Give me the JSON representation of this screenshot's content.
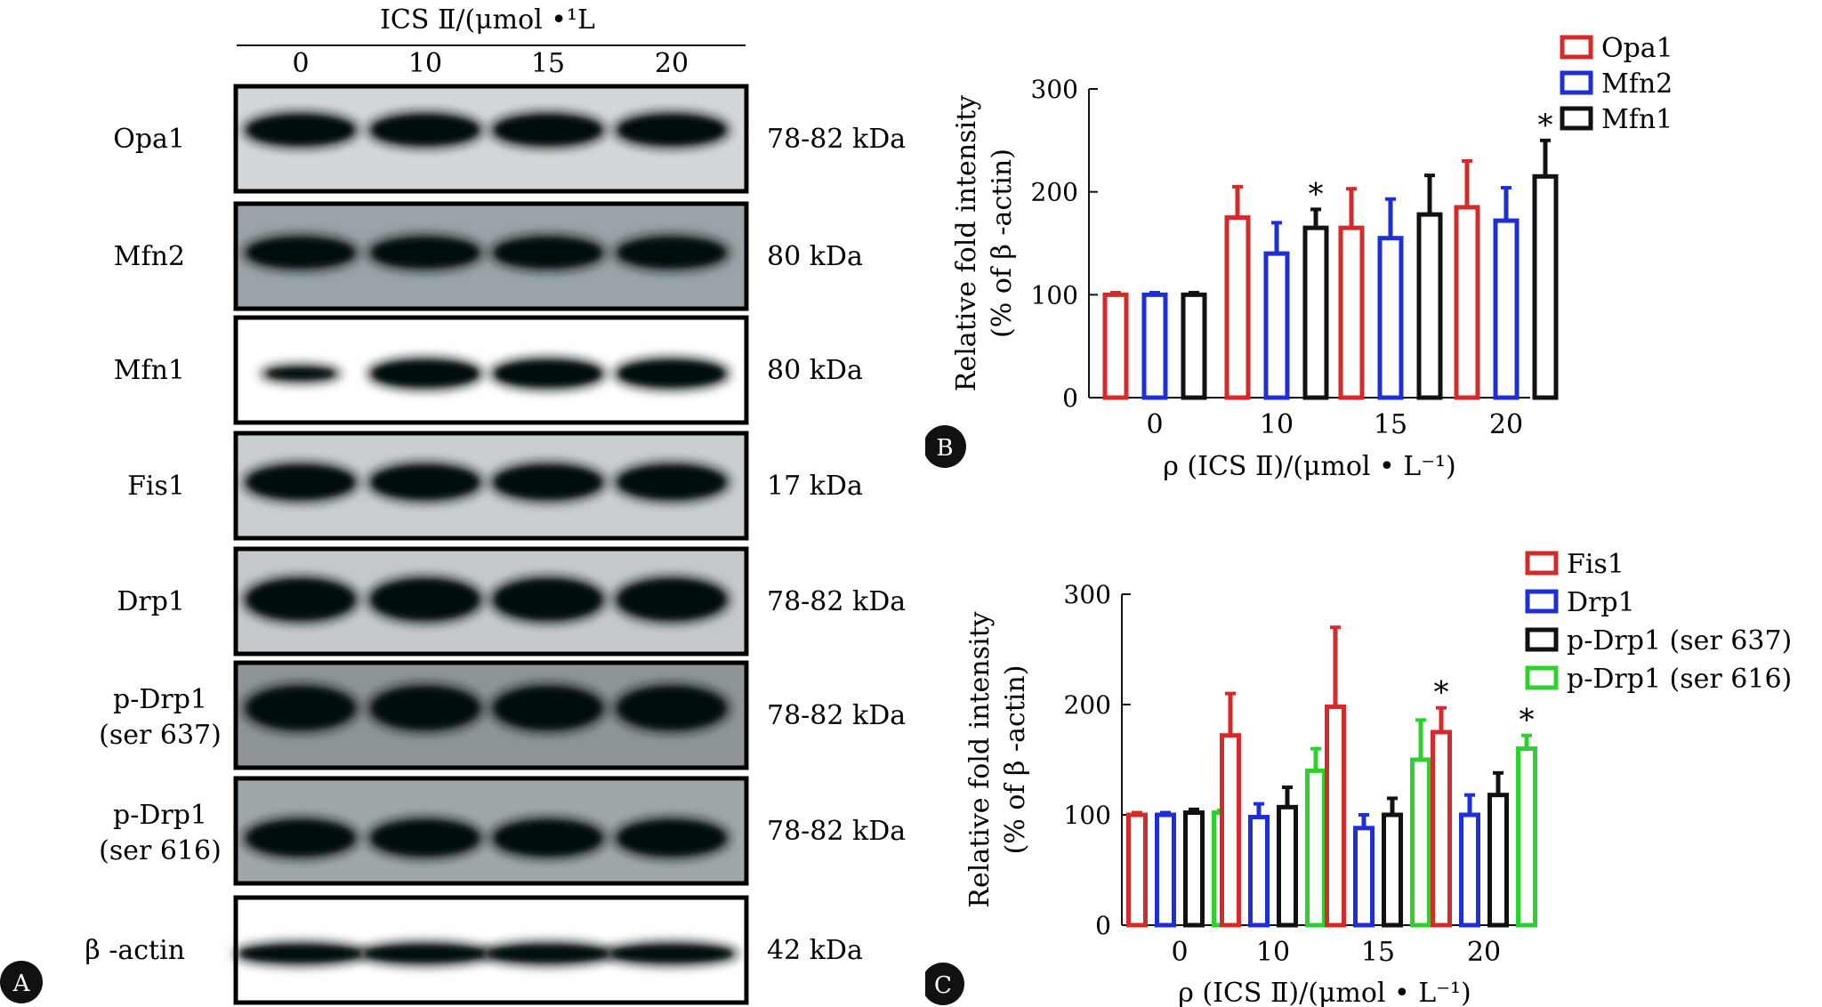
{
  "panel_a": {
    "header": "ICS Ⅱ/(μmol •¹L",
    "lanes": [
      "0",
      "10",
      "15",
      "20"
    ],
    "rows": [
      {
        "label": "Opa1",
        "kda": "78-82 kDa"
      },
      {
        "label": "Mfn2",
        "kda": "80 kDa"
      },
      {
        "label": "Mfn1",
        "kda": "80 kDa"
      },
      {
        "label": "Fis1",
        "kda": "17 kDa"
      },
      {
        "label": "Drp1",
        "kda": "78-82 kDa"
      },
      {
        "label": "p-Drp1\n(ser 637)",
        "kda": "78-82 kDa"
      },
      {
        "label": "p-Drp1\n(ser 616)",
        "kda": "78-82 kDa"
      },
      {
        "label": "β -actin",
        "kda": "42 kDa"
      }
    ],
    "badge": "A"
  },
  "colors": {
    "red": "#d42a2a",
    "blue": "#1f2fd6",
    "black": "#111111",
    "green": "#2ed02e"
  },
  "chart_data": [
    {
      "type": "bar",
      "badge": "B",
      "categories": [
        "0",
        "10",
        "15",
        "20"
      ],
      "ylabel": [
        "Relative fold intensity",
        "(% of β -actin)"
      ],
      "xlabel": "ρ (ICS Ⅱ)/(μmol • L⁻¹)",
      "ylim": [
        0,
        300
      ],
      "yticks": [
        0,
        100,
        200,
        300
      ],
      "series": [
        {
          "name": "Opa1",
          "color": "red",
          "values": [
            100,
            175,
            165,
            185
          ],
          "errors": [
            2,
            30,
            38,
            45
          ],
          "sig": [
            false,
            false,
            false,
            false
          ]
        },
        {
          "name": "Mfn2",
          "color": "blue",
          "values": [
            100,
            140,
            155,
            172
          ],
          "errors": [
            2,
            30,
            38,
            32
          ],
          "sig": [
            false,
            false,
            false,
            false
          ]
        },
        {
          "name": "Mfn1",
          "color": "black",
          "values": [
            100,
            165,
            178,
            215
          ],
          "errors": [
            2,
            18,
            38,
            35
          ],
          "sig": [
            false,
            true,
            false,
            true
          ]
        }
      ]
    },
    {
      "type": "bar",
      "badge": "C",
      "categories": [
        "0",
        "10",
        "15",
        "20"
      ],
      "ylabel": [
        "Relative fold intensity",
        "(% of β -actin)"
      ],
      "xlabel": "ρ (ICS Ⅱ)/(μmol • L⁻¹)",
      "ylim": [
        0,
        300
      ],
      "yticks": [
        0,
        100,
        200,
        300
      ],
      "series": [
        {
          "name": "Fis1",
          "color": "red",
          "values": [
            100,
            172,
            198,
            175
          ],
          "errors": [
            2,
            38,
            72,
            22
          ],
          "sig": [
            false,
            false,
            false,
            true
          ]
        },
        {
          "name": "Drp1",
          "color": "blue",
          "values": [
            100,
            98,
            88,
            100
          ],
          "errors": [
            2,
            12,
            12,
            18
          ],
          "sig": [
            false,
            false,
            false,
            false
          ]
        },
        {
          "name": "p-Drp1 (ser 637)",
          "color": "black",
          "values": [
            102,
            107,
            100,
            118
          ],
          "errors": [
            3,
            18,
            15,
            20
          ],
          "sig": [
            false,
            false,
            false,
            false
          ]
        },
        {
          "name": "p-Drp1 (ser 616)",
          "color": "green",
          "values": [
            102,
            140,
            150,
            160
          ],
          "errors": [
            2,
            20,
            36,
            12
          ],
          "sig": [
            false,
            false,
            false,
            true
          ]
        }
      ]
    }
  ]
}
